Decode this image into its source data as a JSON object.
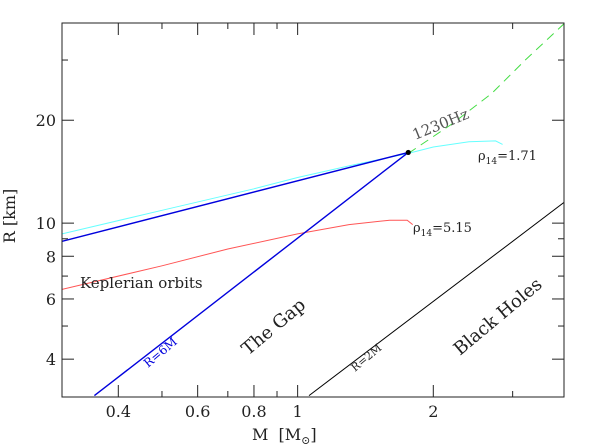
{
  "chart_data": {
    "type": "line",
    "xscale": "log",
    "yscale": "log",
    "xlim": [
      0.3,
      3.9
    ],
    "ylim": [
      3.1,
      38.5
    ],
    "xlabel_main": "M",
    "xlabel_unit": "[M",
    "xlabel_unit_symbol": "⊙",
    "xlabel_close": "]",
    "ylabel": "R [km]",
    "x_ticks": [
      {
        "value": 0.4,
        "label": "0.4"
      },
      {
        "value": 0.6,
        "label": "0.6"
      },
      {
        "value": 0.8,
        "label": "0.8"
      },
      {
        "value": 1,
        "label": "1"
      },
      {
        "value": 2,
        "label": "2"
      }
    ],
    "x_minor_ticks": [
      0.5,
      0.7,
      0.9,
      3
    ],
    "y_ticks": [
      {
        "value": 4,
        "label": "4"
      },
      {
        "value": 6,
        "label": "6"
      },
      {
        "value": 8,
        "label": "8"
      },
      {
        "value": 10,
        "label": "10"
      },
      {
        "value": 20,
        "label": "20"
      }
    ],
    "y_minor_ticks": [
      5,
      7,
      9,
      30
    ],
    "grid": false,
    "series": [
      {
        "id": "rho171",
        "color": "#66ffff",
        "dashed": false,
        "points": [
          [
            0.3,
            9.3
          ],
          [
            0.5,
            10.9
          ],
          [
            0.8,
            12.6
          ],
          [
            1.0,
            13.6
          ],
          [
            1.3,
            14.7
          ],
          [
            1.76,
            16.0
          ],
          [
            2.0,
            16.7
          ],
          [
            2.4,
            17.3
          ],
          [
            2.75,
            17.4
          ],
          [
            2.85,
            17.0
          ]
        ]
      },
      {
        "id": "rho171-extension",
        "color": "#44dd44",
        "dashed": true,
        "points": [
          [
            1.76,
            16.0
          ],
          [
            2.2,
            19.5
          ],
          [
            2.7,
            24.0
          ],
          [
            3.2,
            30.0
          ],
          [
            3.9,
            38.3
          ]
        ]
      },
      {
        "id": "rho515",
        "color": "#ff5555",
        "dashed": false,
        "points": [
          [
            0.3,
            6.4
          ],
          [
            0.5,
            7.5
          ],
          [
            0.7,
            8.4
          ],
          [
            1.0,
            9.3
          ],
          [
            1.3,
            9.9
          ],
          [
            1.6,
            10.2
          ],
          [
            1.75,
            10.2
          ],
          [
            1.8,
            9.9
          ]
        ]
      },
      {
        "id": "upper-bound",
        "color": "#0000dd",
        "dashed": false,
        "points": [
          [
            0.3,
            8.85
          ],
          [
            1.76,
            16.1
          ]
        ]
      },
      {
        "id": "r-6m",
        "color": "#0000dd",
        "dashed": false,
        "points": [
          [
            0.354,
            3.13
          ],
          [
            1.76,
            16.1
          ]
        ]
      },
      {
        "id": "r-2m",
        "color": "#000000",
        "dashed": false,
        "points": [
          [
            1.06,
            3.13
          ],
          [
            3.9,
            11.5
          ]
        ]
      }
    ],
    "point": {
      "x": 1.76,
      "y": 16.1,
      "label": "1230Hz"
    },
    "annotations": {
      "rho171": {
        "prefix": "ρ",
        "sub": "14",
        "suffix": "=1.71"
      },
      "rho515": {
        "prefix": "ρ",
        "sub": "14",
        "suffix": "=5.15"
      },
      "keplerian": "Keplerian orbits",
      "r6m": "R=6M",
      "gap": "The Gap",
      "r2m": "R=2M",
      "black_holes": "Black Holes"
    }
  }
}
